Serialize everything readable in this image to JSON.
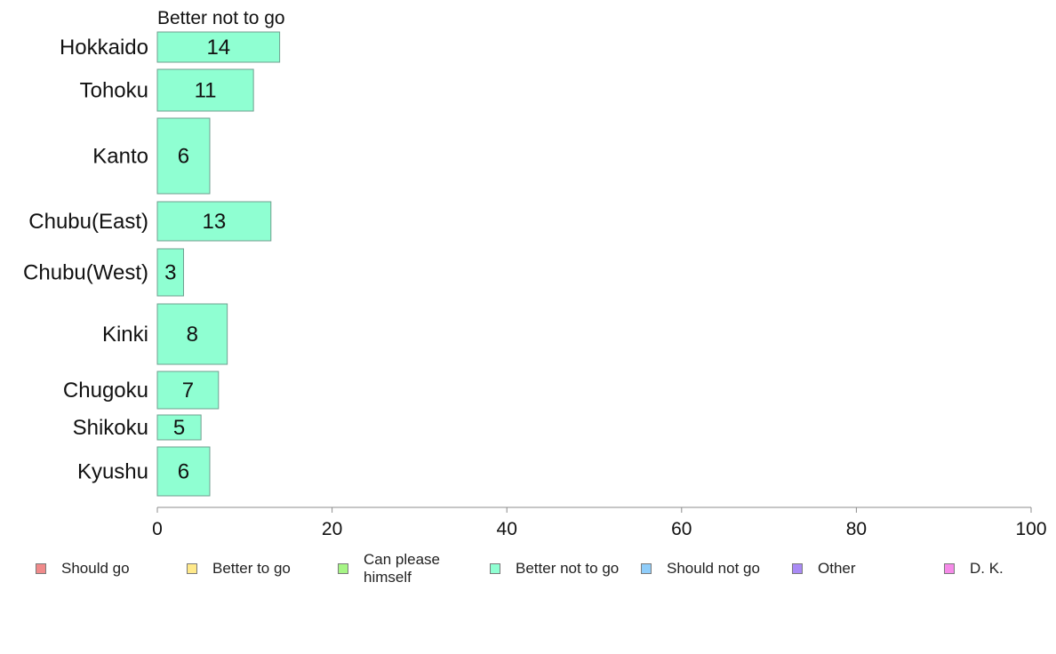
{
  "chart_data": {
    "type": "bar",
    "orientation": "horizontal",
    "series_label": "Better not to go",
    "categories": [
      "Hokkaido",
      "Tohoku",
      "Kanto",
      "Chubu(East)",
      "Chubu(West)",
      "Kinki",
      "Chugoku",
      "Shikoku",
      "Kyushu"
    ],
    "values": [
      14,
      11,
      6,
      13,
      3,
      8,
      7,
      5,
      6
    ],
    "xlim": [
      0,
      100
    ],
    "x_ticks": [
      0,
      20,
      40,
      60,
      80,
      100
    ],
    "grid": false,
    "legend_position": "bottom",
    "bar_color": "#8fffd2",
    "legend": [
      {
        "label": "Should go",
        "color": "#f08a8a"
      },
      {
        "label": "Better to go",
        "color": "#ffe98a"
      },
      {
        "label": "Can please himself",
        "color": "#a6f585"
      },
      {
        "label": "Better not to go",
        "color": "#8fffd2"
      },
      {
        "label": "Should not go",
        "color": "#8fcdfa"
      },
      {
        "label": "Other",
        "color": "#a98af5"
      },
      {
        "label": "D. K.",
        "color": "#f58ae8"
      }
    ]
  }
}
